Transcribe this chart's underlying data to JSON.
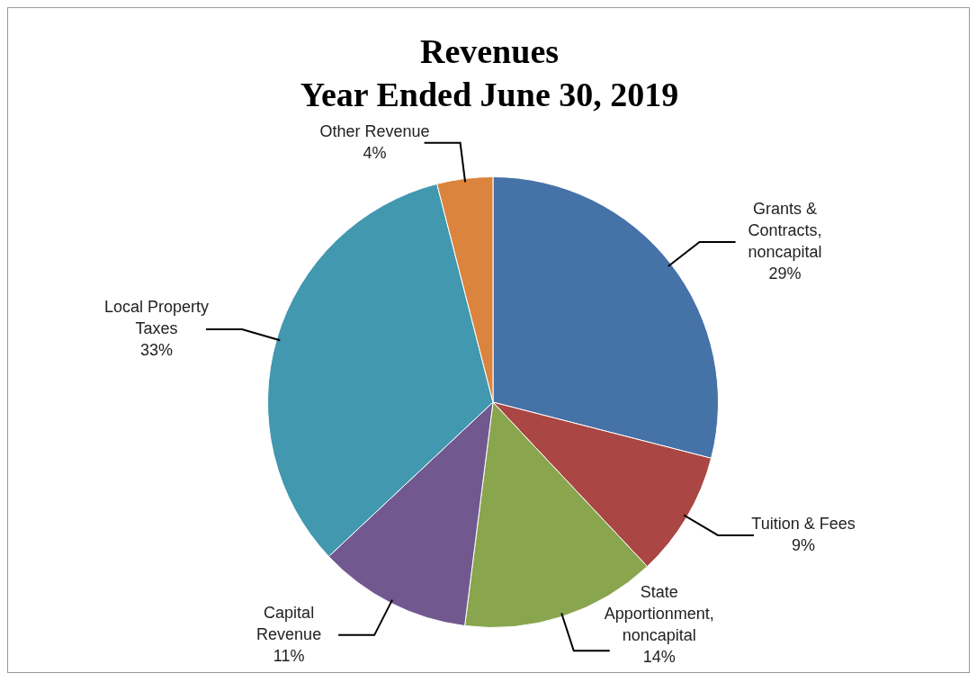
{
  "chart_data": {
    "type": "pie",
    "title": "Revenues",
    "subtitle": "Year Ended June 30, 2019",
    "categories": [
      "Grants & Contracts, noncapital",
      "Tuition & Fees",
      "State Apportionment, noncapital",
      "Capital Revenue",
      "Local Property Taxes",
      "Other Revenue"
    ],
    "values": [
      29,
      9,
      14,
      11,
      33,
      4
    ],
    "colors": [
      "#4572a7",
      "#aa4643",
      "#89a54e",
      "#71588f",
      "#4198af",
      "#db843d"
    ],
    "value_labels": [
      "29%",
      "9%",
      "14%",
      "11%",
      "33%",
      "4%"
    ],
    "legend": false
  }
}
